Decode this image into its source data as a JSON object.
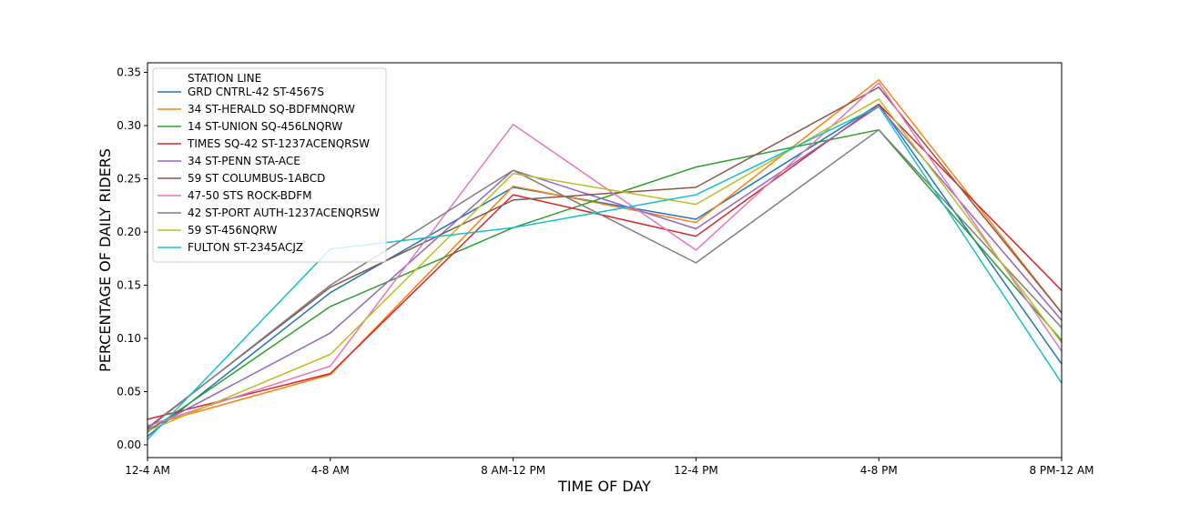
{
  "chart_data": {
    "type": "line",
    "xlabel": "TIME OF DAY",
    "ylabel": "PERCENTAGE OF DAILY RIDERS",
    "categories": [
      "12-4 AM",
      "4-8 AM",
      "8 AM-12 PM",
      "12-4 PM",
      "4-8 PM",
      "8 PM-12 AM"
    ],
    "yticks": [
      "0.00",
      "0.05",
      "0.10",
      "0.15",
      "0.20",
      "0.25",
      "0.30",
      "0.35"
    ],
    "ylim": [
      -0.012,
      0.359
    ],
    "grid": false,
    "legend": {
      "title": "STATION LINE",
      "placement": "top-left"
    },
    "series": [
      {
        "name": "GRD CNTRL-42 ST-4567S",
        "color": "#1f77b4",
        "values": [
          0.008,
          0.143,
          0.242,
          0.212,
          0.32,
          0.076
        ]
      },
      {
        "name": "34 ST-HERALD SQ-BDFMNQRW",
        "color": "#ff7f0e",
        "values": [
          0.018,
          0.066,
          0.243,
          0.209,
          0.343,
          0.124
        ]
      },
      {
        "name": "14 ST-UNION SQ-456LNQRW",
        "color": "#2ca02c",
        "values": [
          0.012,
          0.13,
          0.204,
          0.261,
          0.296,
          0.098
        ]
      },
      {
        "name": "TIMES SQ-42 ST-1237ACENQRSW",
        "color": "#d62728",
        "values": [
          0.024,
          0.067,
          0.235,
          0.196,
          0.32,
          0.145
        ]
      },
      {
        "name": "34 ST-PENN STA-ACE",
        "color": "#9467bd",
        "values": [
          0.014,
          0.105,
          0.258,
          0.203,
          0.318,
          0.117
        ]
      },
      {
        "name": "59 ST COLUMBUS-1ABCD",
        "color": "#8c564b",
        "values": [
          0.016,
          0.148,
          0.23,
          0.242,
          0.336,
          0.124
        ]
      },
      {
        "name": "47-50 STS ROCK-BDFM",
        "color": "#e377c2",
        "values": [
          0.018,
          0.074,
          0.301,
          0.183,
          0.34,
          0.088
        ]
      },
      {
        "name": "42 ST-PORT AUTH-1237ACENQRSW",
        "color": "#7f7f7f",
        "values": [
          0.015,
          0.15,
          0.258,
          0.171,
          0.296,
          0.11
        ]
      },
      {
        "name": "59 ST-456NQRW",
        "color": "#bcbd22",
        "values": [
          0.013,
          0.085,
          0.255,
          0.226,
          0.325,
          0.096
        ]
      },
      {
        "name": "FULTON ST-2345ACJZ",
        "color": "#17becf",
        "values": [
          0.005,
          0.184,
          0.204,
          0.235,
          0.318,
          0.058
        ]
      }
    ]
  }
}
